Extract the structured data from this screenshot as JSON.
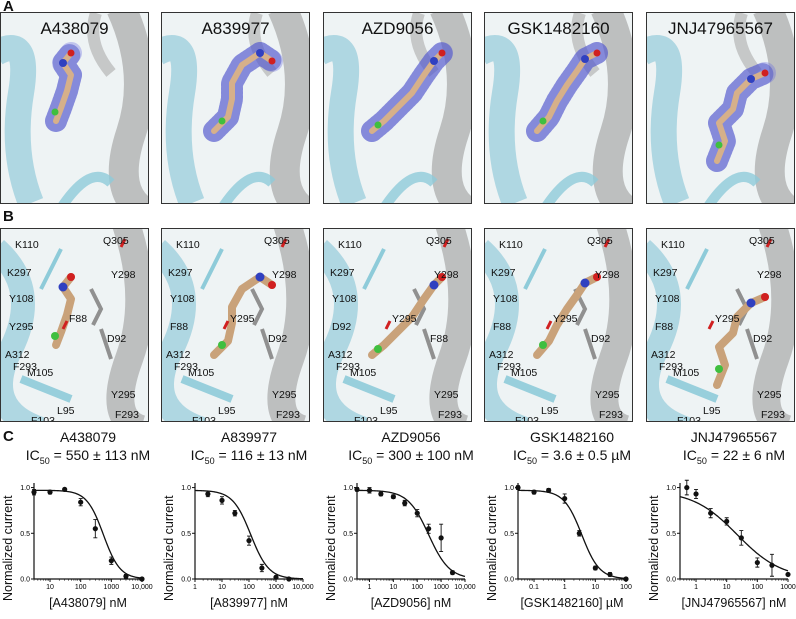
{
  "panels": {
    "a": "A",
    "b": "B",
    "c": "C"
  },
  "compounds": [
    {
      "name": "A438079",
      "ic50_label": "IC",
      "ic50_sub": "50",
      "ic50_value": " = 550 ± 113 nM",
      "xlabel": "[A438079] nM",
      "residues": [
        "K110",
        "Q305",
        "K297",
        "Y298",
        "Y108",
        "F88",
        "Y295",
        "D92",
        "A312",
        "F293",
        "M105",
        "Y295",
        "F103",
        "L95",
        "F293"
      ]
    },
    {
      "name": "A839977",
      "ic50_label": "IC",
      "ic50_sub": "50",
      "ic50_value": " = 116 ± 13 nM",
      "xlabel": "[A839977] nM",
      "residues": [
        "K110",
        "Q305",
        "K297",
        "Y298",
        "Y108",
        "Y295",
        "F88",
        "D92",
        "A312",
        "F293",
        "M105",
        "Y295",
        "F103",
        "L95",
        "F293"
      ]
    },
    {
      "name": "AZD9056",
      "ic50_label": "IC",
      "ic50_sub": "50",
      "ic50_value": " = 300 ± 100 nM",
      "xlabel": "[AZD9056] nM",
      "residues": [
        "K110",
        "Q305",
        "K297",
        "Y298",
        "Y108",
        "Y295",
        "D92",
        "F88",
        "A312",
        "F293",
        "M105",
        "Y295",
        "F103",
        "L95",
        "F293"
      ]
    },
    {
      "name": "GSK1482160",
      "ic50_label": "IC",
      "ic50_sub": "50",
      "ic50_value": " = 3.6 ± 0.5 µM",
      "xlabel": "[GSK1482160] µM",
      "residues": [
        "K110",
        "Q305",
        "K297",
        "Y298",
        "Y108",
        "Y295",
        "F88",
        "D92",
        "A312",
        "F293",
        "M105",
        "Y295",
        "F103",
        "L95",
        "F293"
      ]
    },
    {
      "name": "JNJ47965567",
      "ic50_label": "IC",
      "ic50_sub": "50",
      "ic50_value": " = 22 ± 6 nM",
      "xlabel": "[JNJ47965567] nM",
      "residues": [
        "K110",
        "Q305",
        "K297",
        "Y298",
        "Y108",
        "Y295",
        "F88",
        "D92",
        "A312",
        "F293",
        "M105",
        "Y295",
        "F103",
        "L95",
        "F293"
      ]
    }
  ],
  "chart_data": [
    {
      "type": "scatter",
      "title": "A438079",
      "xlabel": "[A438079] nM",
      "ylabel": "Normalized current",
      "xscale": "log",
      "xlim": [
        3,
        10000
      ],
      "ylim": [
        0,
        1.05
      ],
      "xticks": [
        "10",
        "100",
        "1000",
        "10,000"
      ],
      "yticks": [
        "0.0",
        "0.5",
        "1.0"
      ],
      "x": [
        3,
        10,
        30,
        100,
        300,
        1000,
        3000,
        10000
      ],
      "y": [
        0.95,
        0.95,
        0.98,
        0.84,
        0.55,
        0.2,
        0.03,
        0.0
      ],
      "err": [
        0.03,
        0.02,
        0.0,
        0.04,
        0.1,
        0.04,
        0.02,
        0.0
      ],
      "ic50": 550,
      "hill": 1.6
    },
    {
      "type": "scatter",
      "title": "A839977",
      "xlabel": "[A839977] nM",
      "ylabel": "Normalized current",
      "xscale": "log",
      "xlim": [
        1,
        10000
      ],
      "ylim": [
        0,
        1.05
      ],
      "xticks": [
        "1",
        "10",
        "100",
        "1000",
        "10,000"
      ],
      "yticks": [
        "0.0",
        "0.5",
        "1.0"
      ],
      "x": [
        3,
        10,
        30,
        100,
        300,
        1000,
        3000
      ],
      "y": [
        0.93,
        0.86,
        0.72,
        0.42,
        0.12,
        0.02,
        0.0
      ],
      "err": [
        0.03,
        0.04,
        0.03,
        0.05,
        0.04,
        0.01,
        0.0
      ],
      "ic50": 116,
      "hill": 1.3
    },
    {
      "type": "scatter",
      "title": "AZD9056",
      "xlabel": "[AZD9056] nM",
      "ylabel": "Normalized current",
      "xscale": "log",
      "xlim": [
        0.3,
        10000
      ],
      "ylim": [
        0,
        1.05
      ],
      "xticks": [
        "1",
        "10",
        "100",
        "1000",
        "10,000"
      ],
      "yticks": [
        "0.0",
        "0.5",
        "1.0"
      ],
      "x": [
        0.3,
        1,
        3,
        10,
        30,
        100,
        300,
        1000,
        3000
      ],
      "y": [
        0.98,
        0.97,
        0.93,
        0.9,
        0.83,
        0.72,
        0.55,
        0.45,
        0.07
      ],
      "err": [
        0.02,
        0.03,
        0.02,
        0.02,
        0.03,
        0.04,
        0.05,
        0.15,
        0.02
      ],
      "ic50": 300,
      "hill": 1.0
    },
    {
      "type": "scatter",
      "title": "GSK1482160",
      "xlabel": "[GSK1482160] µM",
      "ylabel": "Normalized current",
      "xscale": "log",
      "xlim": [
        0.03,
        100
      ],
      "ylim": [
        0,
        1.05
      ],
      "xticks": [
        "0.1",
        "1",
        "10",
        "100"
      ],
      "yticks": [
        "0.0",
        "0.5",
        "1.0"
      ],
      "x": [
        0.03,
        0.1,
        0.3,
        1,
        3,
        10,
        30,
        100
      ],
      "y": [
        1.0,
        0.95,
        0.97,
        0.88,
        0.5,
        0.12,
        0.05,
        0.0
      ],
      "err": [
        0.02,
        0.02,
        0.02,
        0.05,
        0.03,
        0.02,
        0.02,
        0.0
      ],
      "ic50": 3.6,
      "hill": 1.5
    },
    {
      "type": "scatter",
      "title": "JNJ47965567",
      "xlabel": "[JNJ47965567] nM",
      "ylabel": "Normalized current",
      "xscale": "log",
      "xlim": [
        0.3,
        1000
      ],
      "ylim": [
        0,
        1.05
      ],
      "xticks": [
        "1",
        "10",
        "100",
        "1000"
      ],
      "yticks": [
        "0.0",
        "0.5",
        "1.0"
      ],
      "x": [
        0.5,
        1,
        3,
        10,
        30,
        100,
        300,
        1000
      ],
      "y": [
        1.0,
        0.93,
        0.72,
        0.63,
        0.45,
        0.18,
        0.15,
        0.05
      ],
      "err": [
        0.08,
        0.05,
        0.05,
        0.04,
        0.08,
        0.05,
        0.12,
        0.0
      ],
      "ic50": 22,
      "hill": 0.6
    }
  ]
}
